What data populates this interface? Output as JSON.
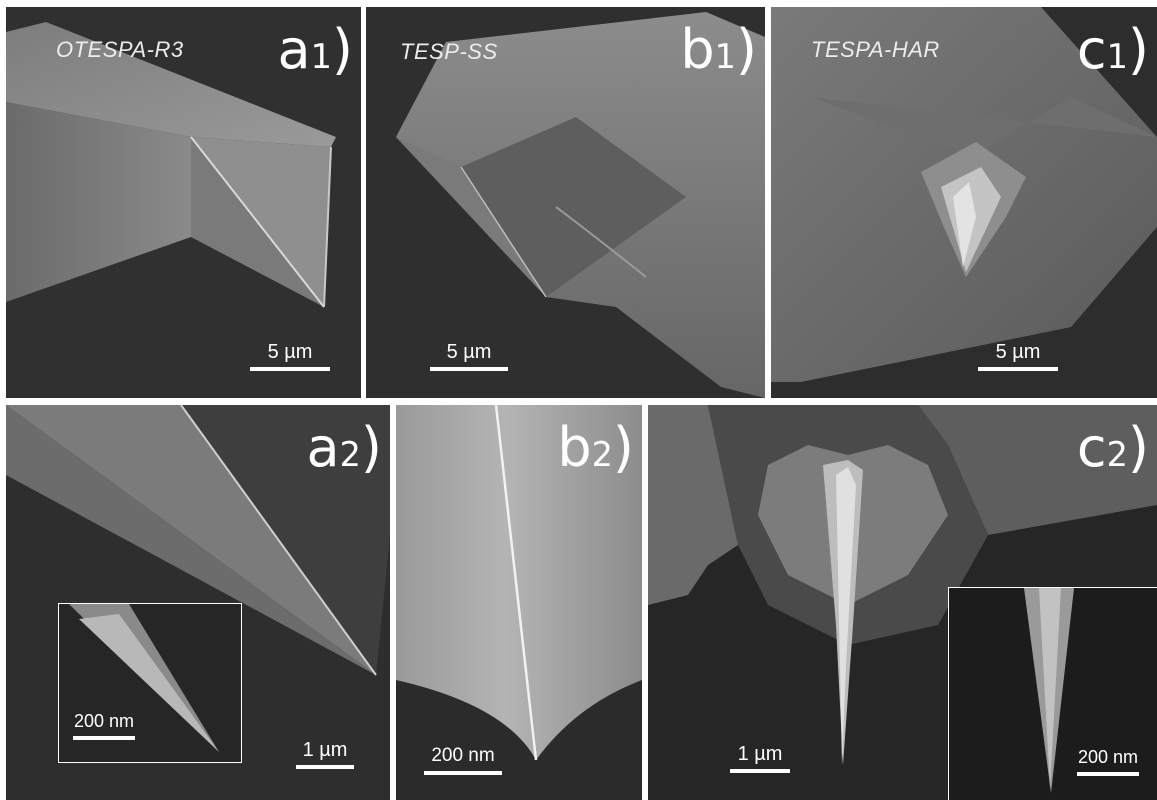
{
  "figure": {
    "panels": [
      {
        "id": "a1",
        "letter": "a",
        "sub": "1",
        "tip": "OTESPA-R3",
        "scale": "5 µm"
      },
      {
        "id": "b1",
        "letter": "b",
        "sub": "1",
        "tip": "TESP-SS",
        "scale": "5 µm"
      },
      {
        "id": "c1",
        "letter": "c",
        "sub": "1",
        "tip": "TESPA-HAR",
        "scale": "5 µm"
      },
      {
        "id": "a2",
        "letter": "a",
        "sub": "2",
        "scale": "1 µm",
        "inset_scale": "200 nm"
      },
      {
        "id": "b2",
        "letter": "b",
        "sub": "2",
        "scale": "200 nm"
      },
      {
        "id": "c2",
        "letter": "c",
        "sub": "2",
        "scale": "1 µm",
        "inset_scale": "200 nm"
      }
    ]
  }
}
